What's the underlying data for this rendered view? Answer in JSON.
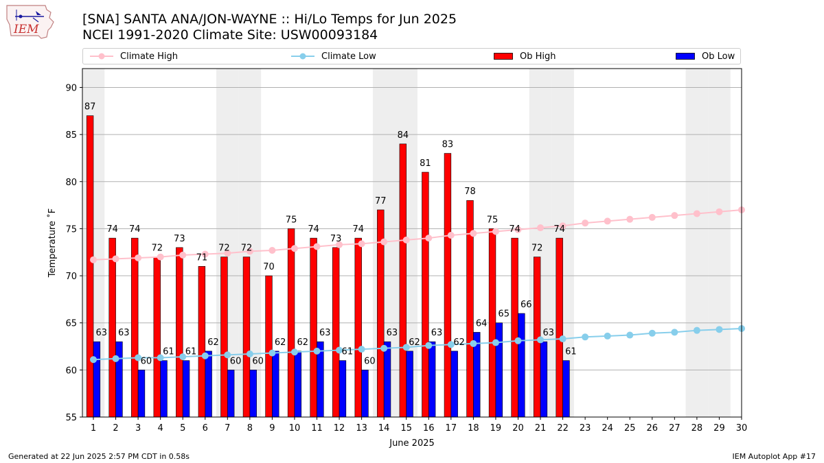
{
  "header": {
    "title": "[SNA] SANTA ANA/JON-WAYNE :: Hi/Lo Temps for Jun 2025",
    "subtitle": "NCEI 1991-2020 Climate Site: USW00093184"
  },
  "logo": {
    "text": "IEM",
    "icon": "iem-logo-icon"
  },
  "footer": {
    "left": "Generated at 22 Jun 2025 2:57 PM CDT in 0.58s",
    "right": "IEM Autoplot App #17"
  },
  "colors": {
    "ob_high": "#ff0000",
    "ob_low": "#0000ff",
    "climate_high": "#ffc0cb",
    "climate_low": "#87ceeb",
    "weekend_band": "#eeeeee",
    "grid": "#b0b0b0"
  },
  "chart_data": {
    "type": "bar",
    "xlabel": "June 2025",
    "ylabel": "Temperature ˚F",
    "ylim": [
      55,
      92
    ],
    "yticks": [
      55,
      60,
      65,
      70,
      75,
      80,
      85,
      90
    ],
    "grid": "horizontal",
    "legend_position": "top",
    "categories": [
      "1",
      "2",
      "3",
      "4",
      "5",
      "6",
      "7",
      "8",
      "9",
      "10",
      "11",
      "12",
      "13",
      "14",
      "15",
      "16",
      "17",
      "18",
      "19",
      "20",
      "21",
      "22",
      "23",
      "24",
      "25",
      "26",
      "27",
      "28",
      "29",
      "30"
    ],
    "weekend_days": [
      1,
      7,
      8,
      14,
      15,
      21,
      22,
      28,
      29
    ],
    "series": [
      {
        "name": "Ob High",
        "kind": "bar",
        "values": [
          87,
          74,
          74,
          72,
          73,
          71,
          72,
          72,
          70,
          75,
          74,
          73,
          74,
          77,
          84,
          81,
          83,
          78,
          75,
          74,
          72,
          74,
          null,
          null,
          null,
          null,
          null,
          null,
          null,
          null
        ]
      },
      {
        "name": "Ob Low",
        "kind": "bar",
        "values": [
          63,
          63,
          60,
          61,
          61,
          62,
          60,
          60,
          62,
          62,
          63,
          61,
          60,
          63,
          62,
          63,
          62,
          64,
          65,
          66,
          63,
          61,
          null,
          null,
          null,
          null,
          null,
          null,
          null,
          null
        ]
      },
      {
        "name": "Climate High",
        "kind": "line",
        "values": [
          71.7,
          71.8,
          71.9,
          72.0,
          72.2,
          72.3,
          72.4,
          72.6,
          72.7,
          72.9,
          73.1,
          73.3,
          73.4,
          73.6,
          73.8,
          74.0,
          74.3,
          74.5,
          74.7,
          74.9,
          75.1,
          75.3,
          75.6,
          75.8,
          76.0,
          76.2,
          76.4,
          76.6,
          76.8,
          77.0
        ]
      },
      {
        "name": "Climate Low",
        "kind": "line",
        "values": [
          61.1,
          61.2,
          61.3,
          61.3,
          61.4,
          61.5,
          61.6,
          61.7,
          61.8,
          61.9,
          62.0,
          62.1,
          62.2,
          62.3,
          62.4,
          62.6,
          62.7,
          62.8,
          62.9,
          63.1,
          63.2,
          63.3,
          63.5,
          63.6,
          63.7,
          63.9,
          64.0,
          64.2,
          64.3,
          64.4
        ]
      }
    ]
  }
}
